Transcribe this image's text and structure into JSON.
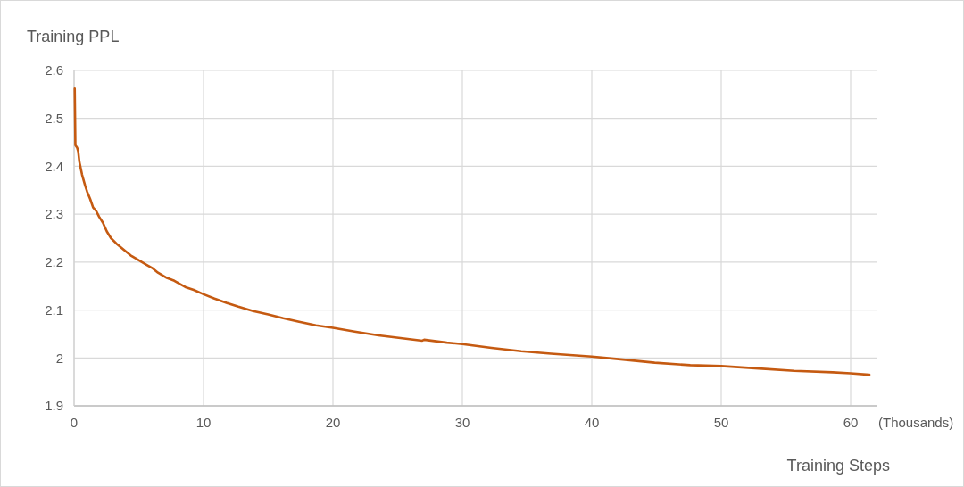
{
  "chart_data": {
    "type": "line",
    "xlabel": "Training Steps",
    "ylabel": "Training PPL",
    "annotations": [
      "(Thousands)"
    ],
    "x": [
      0.05,
      0.1,
      0.23,
      0.32,
      0.41,
      0.62,
      0.85,
      1.01,
      1.24,
      1.47,
      1.7,
      1.93,
      2.23,
      2.53,
      2.85,
      3.26,
      3.84,
      4.37,
      4.87,
      5.56,
      6.02,
      6.48,
      7.17,
      7.75,
      8.67,
      9.24,
      10,
      10.85,
      11.77,
      12.69,
      13.84,
      15,
      16.16,
      17.31,
      18.69,
      20,
      21.68,
      23.52,
      25.36,
      26.9,
      27.05,
      28.8,
      30,
      32.25,
      34.55,
      36.85,
      40,
      41.88,
      44.86,
      47.61,
      50,
      52.89,
      55.64,
      58.62,
      60,
      61.45
    ],
    "values": [
      2.562,
      2.444,
      2.439,
      2.431,
      2.409,
      2.382,
      2.36,
      2.347,
      2.332,
      2.314,
      2.307,
      2.295,
      2.282,
      2.264,
      2.25,
      2.239,
      2.226,
      2.214,
      2.206,
      2.195,
      2.188,
      2.178,
      2.167,
      2.161,
      2.147,
      2.142,
      2.133,
      2.124,
      2.115,
      2.107,
      2.098,
      2.091,
      2.083,
      2.076,
      2.068,
      2.063,
      2.055,
      2.047,
      2.041,
      2.036,
      2.038,
      2.032,
      2.029,
      2.021,
      2.014,
      2.009,
      2.003,
      1.998,
      1.99,
      1.985,
      1.983,
      1.978,
      1.973,
      1.97,
      1.968,
      1.965
    ],
    "color": "#c55a11",
    "xlim": [
      0,
      62
    ],
    "xticks": [
      0,
      10,
      20,
      30,
      40,
      50,
      60
    ],
    "ylim": [
      1.9,
      2.6
    ],
    "yticks": [
      1.9,
      2,
      2.1,
      2.2,
      2.3,
      2.4,
      2.5,
      2.6
    ],
    "grid": true
  }
}
